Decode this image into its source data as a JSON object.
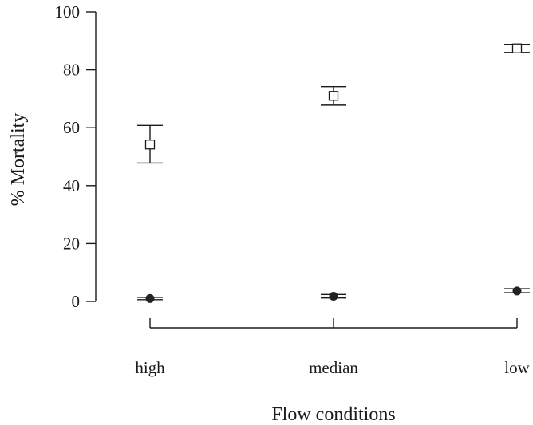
{
  "chart_data": {
    "type": "scatter",
    "title": "",
    "xlabel": "Flow conditions",
    "ylabel": "% Mortality",
    "categories": [
      "high",
      "median",
      "low"
    ],
    "ylim": [
      0,
      100
    ],
    "yticks": [
      0,
      20,
      40,
      60,
      80,
      100
    ],
    "grid": false,
    "legend": "none",
    "series": [
      {
        "marker": "open-square",
        "values": [
          54.2,
          71.0,
          87.4
        ],
        "err_low": [
          47.8,
          67.8,
          86.0
        ],
        "err_high": [
          60.8,
          74.2,
          88.8
        ]
      },
      {
        "marker": "filled-circle",
        "values": [
          1.0,
          1.8,
          3.6
        ],
        "err_low": [
          0.6,
          1.2,
          3.0
        ],
        "err_high": [
          1.4,
          2.4,
          4.4
        ]
      }
    ]
  }
}
